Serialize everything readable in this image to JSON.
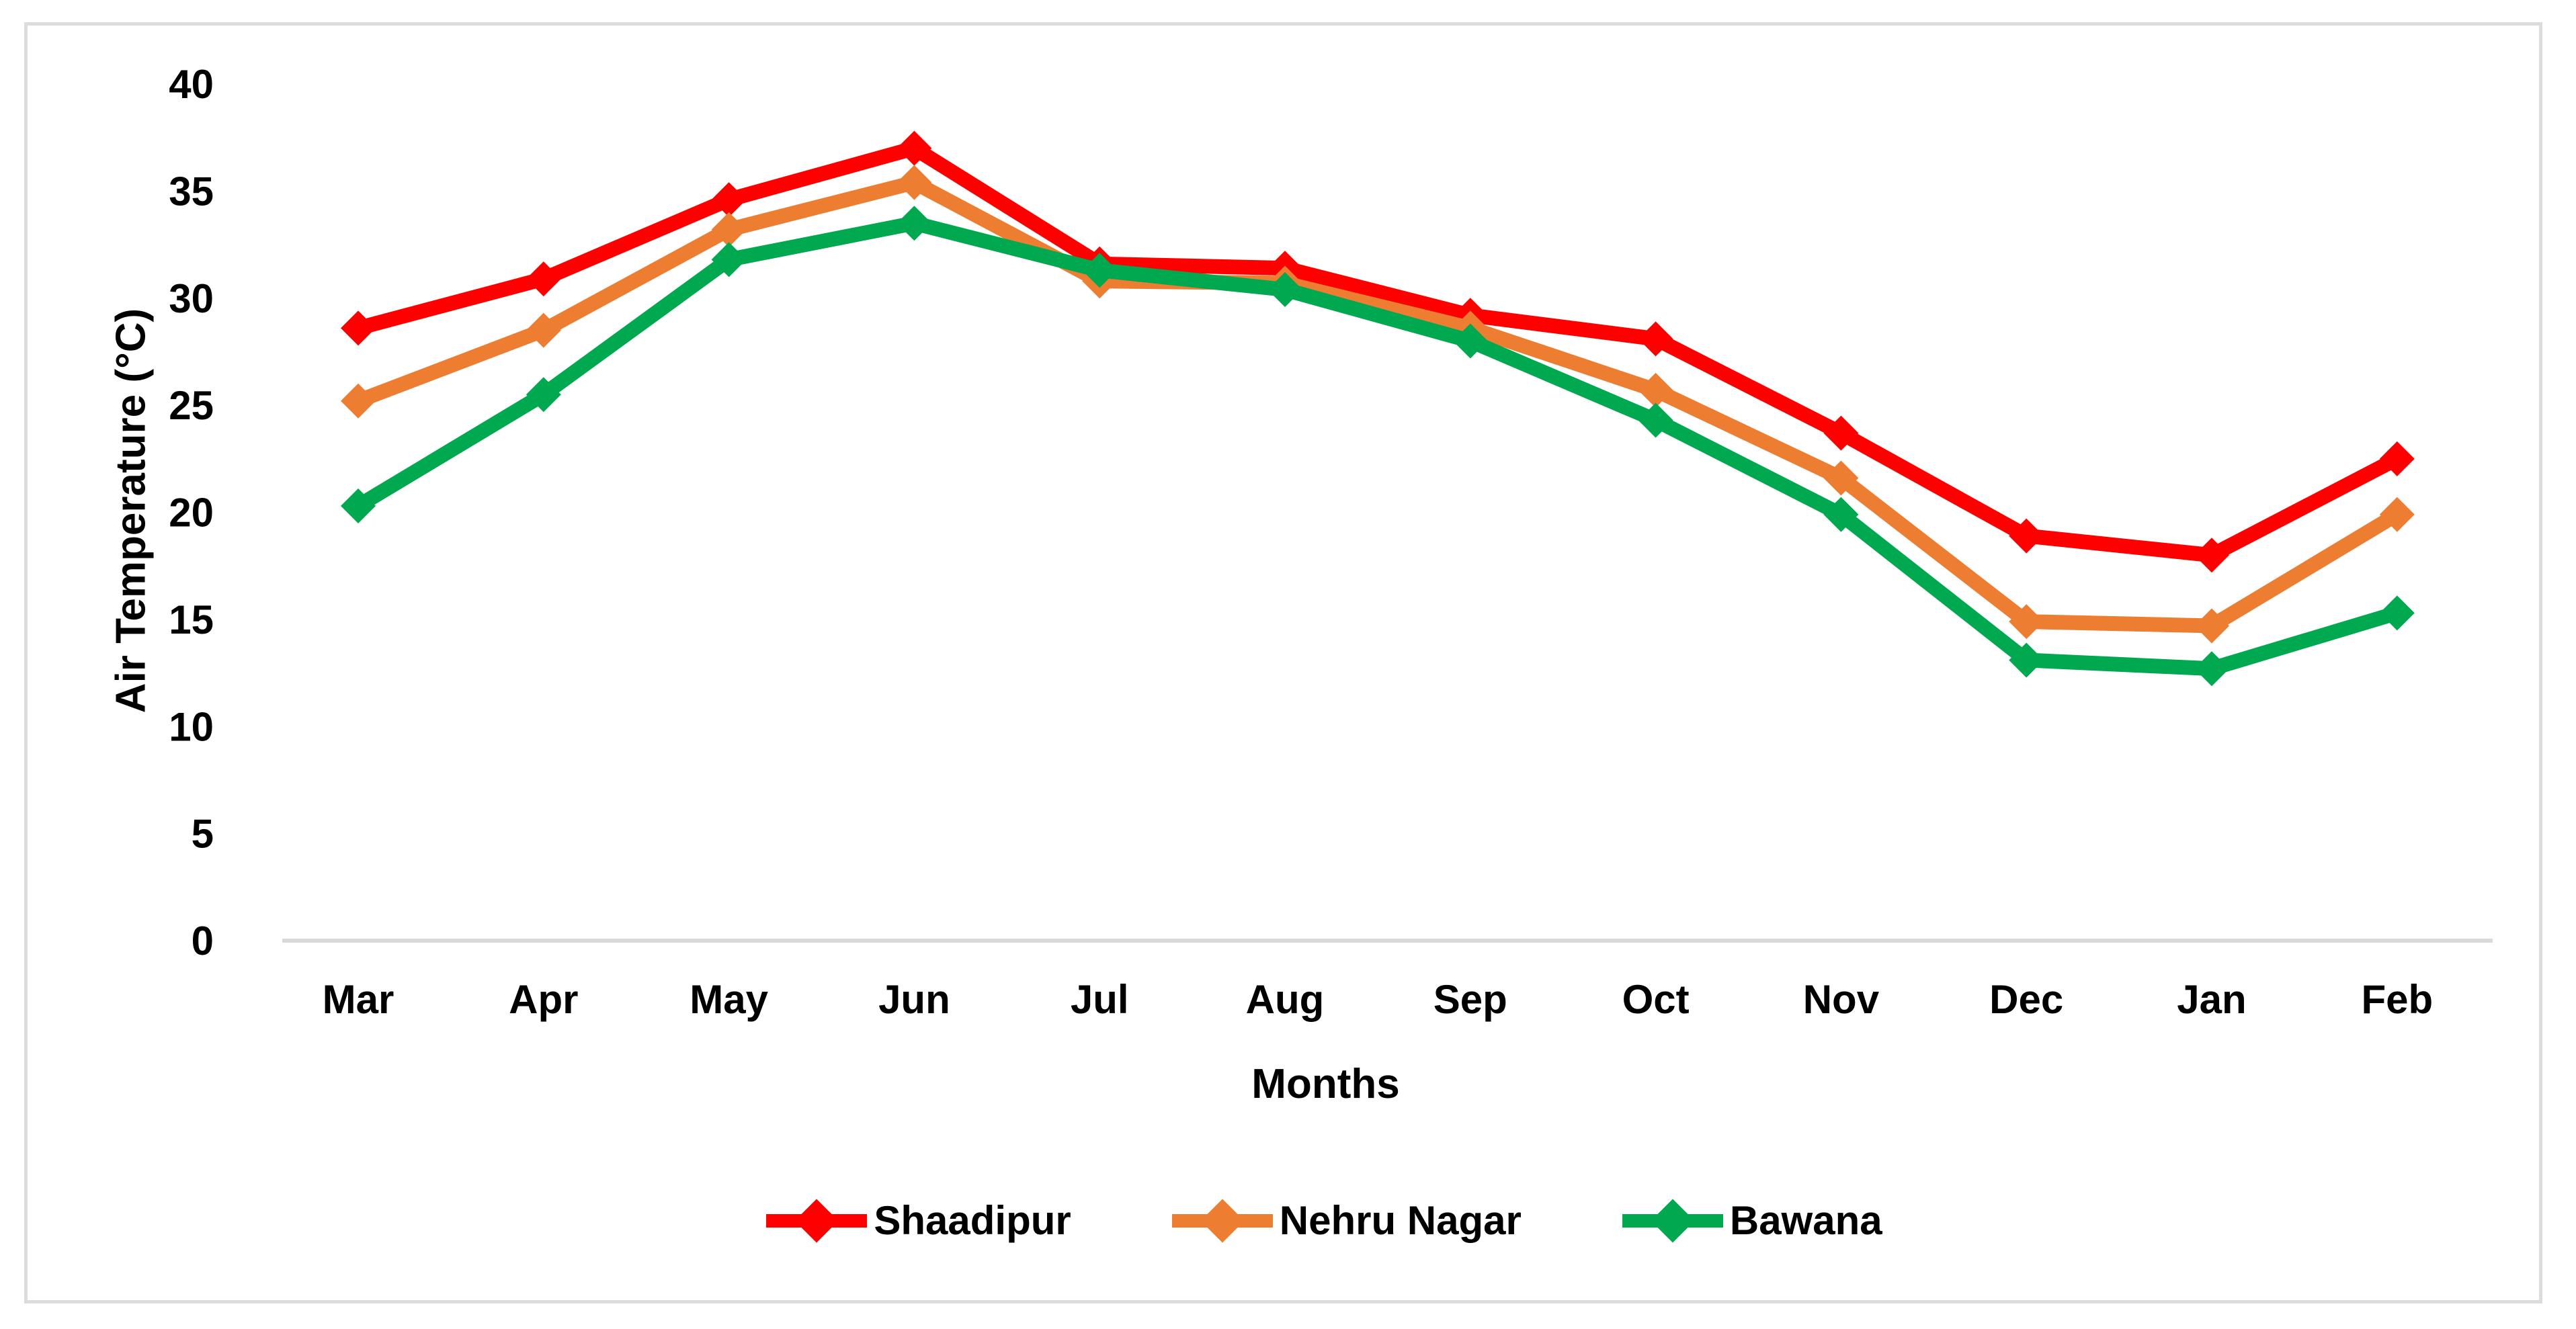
{
  "chart_data": {
    "type": "line",
    "title": "",
    "categories": [
      "Mar",
      "Apr",
      "May",
      "Jun",
      "Jul",
      "Aug",
      "Sep",
      "Oct",
      "Nov",
      "Dec",
      "Jan",
      "Feb"
    ],
    "series": [
      {
        "name": "Shaadipur",
        "color": "#FF0000",
        "values": [
          28.6,
          30.9,
          34.6,
          37.0,
          31.6,
          31.4,
          29.2,
          28.1,
          23.7,
          18.9,
          18.0,
          22.5
        ]
      },
      {
        "name": "Nehru Nagar",
        "color": "#ED7D31",
        "values": [
          25.2,
          28.5,
          33.2,
          35.4,
          30.8,
          30.7,
          28.6,
          25.7,
          21.6,
          14.9,
          14.7,
          19.9
        ]
      },
      {
        "name": "Bawana",
        "color": "#00A850",
        "values": [
          20.3,
          25.5,
          31.8,
          33.5,
          31.3,
          30.4,
          28.0,
          24.3,
          19.9,
          13.1,
          12.7,
          15.3
        ]
      }
    ],
    "xlabel": "Months",
    "ylabel": "Air Temperature (°C)",
    "ylim": [
      0,
      40
    ],
    "ytick_step": 5,
    "grid": false,
    "legend_position": "bottom",
    "marker": "diamond",
    "axis_color": "#D9D9D9",
    "text_color": "#000000",
    "frame_color": "#DCDCDC"
  }
}
